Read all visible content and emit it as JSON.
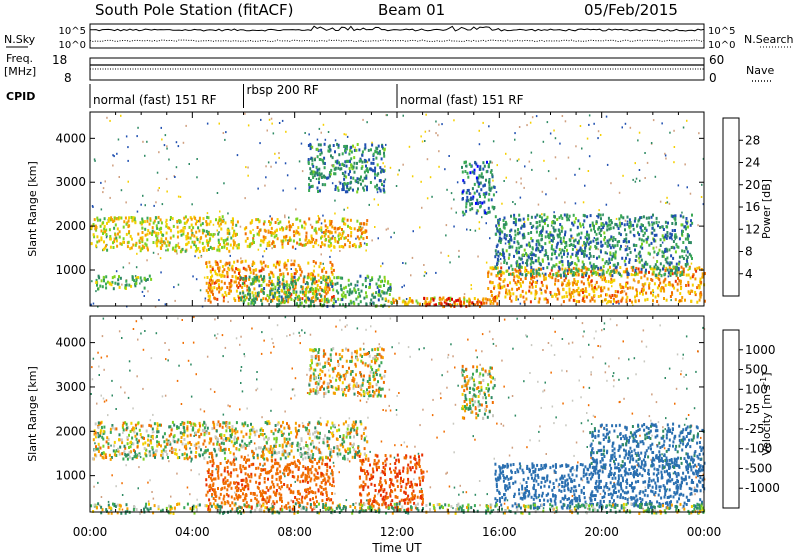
{
  "header": {
    "station": "South Pole Station (fitACF)",
    "beam": "Beam 01",
    "date": "05/Feb/2015"
  },
  "side_labels": {
    "nsky": "N.Sky",
    "freq_line1": "Freq.",
    "freq_line2": "[MHz]",
    "cpid": "CPID",
    "nsearch": "N.Search",
    "nave": "Nave"
  },
  "noise_panel": {
    "left_ticks": [
      "10^5",
      "10^0"
    ],
    "right_ticks": [
      "10^5",
      "10^0"
    ]
  },
  "freq_panel": {
    "left_ticks": [
      "18",
      "8"
    ],
    "right_ticks": [
      "60",
      "0"
    ]
  },
  "cpid_segments": [
    {
      "label": "normal (fast) 151 RF",
      "start_h": 0,
      "end_h": 6
    },
    {
      "label": "rbsp 200 RF",
      "start_h": 6,
      "end_h": 12
    },
    {
      "label": "normal (fast) 151 RF",
      "start_h": 12,
      "end_h": 24
    }
  ],
  "chart_data": [
    {
      "type": "heatmap",
      "name": "power",
      "ylabel": "Slant Range [km]",
      "xlabel": "Time UT",
      "xlim": [
        0,
        24
      ],
      "ylim": [
        180,
        4600
      ],
      "xticks": [
        "00:00",
        "04:00",
        "08:00",
        "12:00",
        "16:00",
        "20:00",
        "00:00"
      ],
      "yticks": [
        1000,
        2000,
        3000,
        4000
      ],
      "colorbar": {
        "label": "Power [dB]",
        "ticks": [
          "4",
          "8",
          "12",
          "16",
          "20",
          "24",
          "28"
        ],
        "colors": [
          "#0000ff",
          "#1f4fb0",
          "#2e8a63",
          "#3aa856",
          "#7ed321",
          "#f5d000",
          "#f5a000",
          "#f06d00",
          "#e83000",
          "#d80000"
        ]
      },
      "regions": [
        {
          "t0": 0.0,
          "t1": 5.8,
          "r0": 1450,
          "r1": 2250,
          "value_db": 18
        },
        {
          "t0": 6.0,
          "t1": 10.8,
          "r0": 1550,
          "r1": 2200,
          "value_db": 20
        },
        {
          "t0": 0.2,
          "t1": 2.4,
          "r0": 600,
          "r1": 900,
          "value_db": 14
        },
        {
          "t0": 4.5,
          "t1": 9.5,
          "r0": 300,
          "r1": 1250,
          "value_db": 22
        },
        {
          "t0": 5.8,
          "t1": 11.8,
          "r0": 200,
          "r1": 900,
          "value_db": 12
        },
        {
          "t0": 11.5,
          "t1": 16.0,
          "r0": 250,
          "r1": 400,
          "value_db": 20
        },
        {
          "t0": 15.5,
          "t1": 24.0,
          "r0": 300,
          "r1": 1100,
          "value_db": 22
        },
        {
          "t0": 15.8,
          "t1": 23.5,
          "r0": 900,
          "r1": 2300,
          "value_db": 10
        },
        {
          "t0": 13.0,
          "t1": 15.5,
          "r0": 200,
          "r1": 400,
          "value_db": 26
        },
        {
          "t0": 8.5,
          "t1": 11.5,
          "r0": 2800,
          "r1": 3900,
          "value_db": 10
        },
        {
          "t0": 14.5,
          "t1": 15.8,
          "r0": 2300,
          "r1": 3500,
          "value_db": 9
        }
      ]
    },
    {
      "type": "heatmap",
      "name": "velocity",
      "ylabel": "Slant Range [km]",
      "xlabel": "Time UT",
      "xlim": [
        0,
        24
      ],
      "ylim": [
        180,
        4600
      ],
      "xticks": [
        "00:00",
        "04:00",
        "08:00",
        "12:00",
        "16:00",
        "20:00",
        "00:00"
      ],
      "yticks": [
        1000,
        2000,
        3000,
        4000
      ],
      "colorbar": {
        "label": "Velocity [m s^-1]",
        "ticks": [
          "1000",
          "500",
          "100",
          "25",
          "-25",
          "-100",
          "-500",
          "-1000"
        ],
        "colors": [
          "#2a3fb0",
          "#2a6fb0",
          "#2e8a63",
          "#3aa856",
          "#7ed321",
          "#c8c8c0",
          "#f5d000",
          "#f5a000",
          "#f06d00",
          "#e83000",
          "#d80000"
        ]
      },
      "regions": [
        {
          "t0": 0.0,
          "t1": 10.8,
          "r0": 1400,
          "r1": 2250,
          "value_ms": 0
        },
        {
          "t0": 4.5,
          "t1": 9.5,
          "r0": 250,
          "r1": 1400,
          "value_ms": -400
        },
        {
          "t0": 10.5,
          "t1": 13.0,
          "r0": 250,
          "r1": 1500,
          "value_ms": -500
        },
        {
          "t0": 15.8,
          "t1": 24.0,
          "r0": 300,
          "r1": 1300,
          "value_ms": 800
        },
        {
          "t0": 19.5,
          "t1": 24.0,
          "r0": 1200,
          "r1": 2200,
          "value_ms": 600
        },
        {
          "t0": 0.0,
          "t1": 24.0,
          "r0": 180,
          "r1": 400,
          "value_ms": 60
        },
        {
          "t0": 14.5,
          "t1": 15.8,
          "r0": 2300,
          "r1": 3500,
          "value_ms": 0
        },
        {
          "t0": 8.5,
          "t1": 11.5,
          "r0": 2800,
          "r1": 3900,
          "value_ms": -30
        }
      ]
    }
  ]
}
